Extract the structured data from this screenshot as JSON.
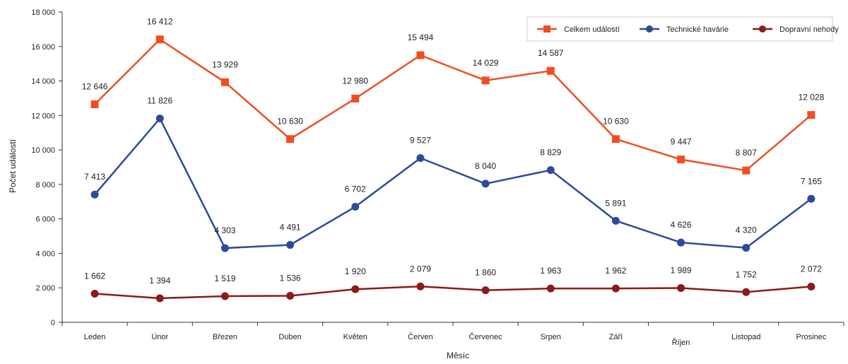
{
  "chart_data": {
    "type": "line",
    "xlabel": "Měsíc",
    "ylabel": "Počet událostí",
    "ylim": [
      0,
      18000
    ],
    "yticks": [
      0,
      2000,
      4000,
      6000,
      8000,
      10000,
      12000,
      14000,
      16000,
      18000
    ],
    "ytick_labels": [
      "0",
      "2 000",
      "4 000",
      "6 000",
      "8 000",
      "10 000",
      "12 000",
      "14 000",
      "16 000",
      "18 000"
    ],
    "grid": false,
    "legend_position": "top-right",
    "categories": [
      "Leden",
      "Únor",
      "Březen",
      "Duben",
      "Květen",
      "Červen",
      "Červenec",
      "Srpen",
      "Září",
      "Říjen",
      "Listopad",
      "Prosinec"
    ],
    "series": [
      {
        "name": "Celkem událostí",
        "color": "#f04e23",
        "marker": "square",
        "values": [
          12646,
          16412,
          13929,
          10630,
          12980,
          15494,
          14029,
          14587,
          10630,
          9447,
          8807,
          12028
        ],
        "labels": [
          "12 646",
          "16 412",
          "13 929",
          "10 630",
          "12 980",
          "15 494",
          "14 029",
          "14 587",
          "10 630",
          "9 447",
          "8 807",
          "12 028"
        ]
      },
      {
        "name": "Technické havárie",
        "color": "#2e4a9b",
        "marker": "circle",
        "values": [
          7413,
          11826,
          4303,
          4491,
          6702,
          9527,
          8040,
          8829,
          5891,
          4626,
          4320,
          7165
        ],
        "labels": [
          "7 413",
          "11 826",
          "4 303",
          "4 491",
          "6 702",
          "9 527",
          "8 040",
          "8 829",
          "5 891",
          "4 626",
          "4 320",
          "7 165"
        ]
      },
      {
        "name": "Dopravní nehody",
        "color": "#8b1a1a",
        "marker": "circle",
        "values": [
          1662,
          1394,
          1519,
          1536,
          1920,
          2079,
          1860,
          1963,
          1962,
          1989,
          1752,
          2072
        ],
        "labels": [
          "1 662",
          "1 394",
          "1 519",
          "1 536",
          "1 920",
          "2 079",
          "1 860",
          "1 963",
          "1 962",
          "1 989",
          "1 752",
          "2 072"
        ]
      }
    ]
  }
}
